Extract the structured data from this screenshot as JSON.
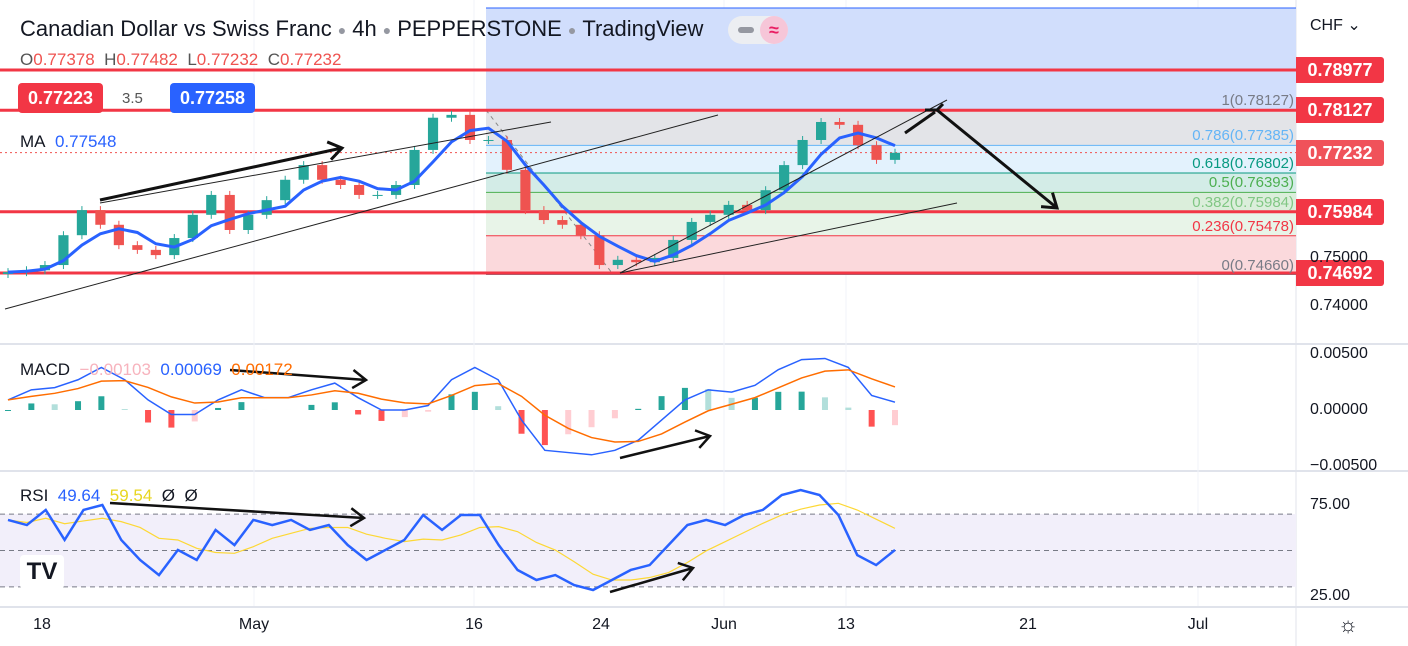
{
  "header": {
    "title": "Canadian Dollar vs Swiss Franc",
    "interval": "4h",
    "exchange": "PEPPERSTONE",
    "source": "TradingView",
    "ohlc": {
      "o_label": "O",
      "o": "0.77378",
      "h_label": "H",
      "h": "0.77482",
      "l_label": "L",
      "l": "0.77232",
      "c_label": "C",
      "c": "0.77232"
    },
    "sell_price": "0.77223",
    "spread": "3.5",
    "buy_price": "0.77258",
    "ma_label": "MA",
    "ma_value": "0.77548",
    "currency": "CHF"
  },
  "colors": {
    "up": "#26a69a",
    "down": "#ef5350",
    "ma": "#2962ff",
    "signal": "#ff6d00",
    "rsi": "#2962ff",
    "rsi_ma": "#fdd835",
    "level": "#f23645"
  },
  "price_axis": {
    "ticks": [
      "0.75000",
      "0.74000"
    ],
    "tick_values": [
      0.75,
      0.74
    ]
  },
  "levels": [
    {
      "price": 0.78977,
      "label": "0.78977"
    },
    {
      "price": 0.78127,
      "label": "0.78127"
    },
    {
      "price": 0.75984,
      "label": "0.75984"
    },
    {
      "price": 0.74692,
      "label": "0.74692"
    }
  ],
  "last_price": {
    "price": 0.77232,
    "label": "0.77232"
  },
  "fib": [
    {
      "ratio": "1",
      "price": 0.78127,
      "text": "1(0.78127)",
      "color": "#787b86",
      "fill": "#e3e4e8"
    },
    {
      "ratio": "0.786",
      "price": 0.77385,
      "text": "0.786(0.77385)",
      "color": "#64b5f6",
      "fill": "#e3f2fd"
    },
    {
      "ratio": "0.618",
      "price": 0.76802,
      "text": "0.618(0.76802)",
      "color": "#089981",
      "fill": "#d3ece7"
    },
    {
      "ratio": "0.5",
      "price": 0.76393,
      "text": "0.5(0.76393)",
      "color": "#4caf50",
      "fill": "#dbeedb"
    },
    {
      "ratio": "0.382",
      "price": 0.75984,
      "text": "0.382(0.75984)",
      "color": "#81c784",
      "fill": "#e8f4e8"
    },
    {
      "ratio": "0.236",
      "price": 0.75478,
      "text": "0.236(0.75478)",
      "color": "#f23645",
      "fill": "#fbd9dc"
    },
    {
      "ratio": "0",
      "price": 0.7466,
      "text": "0(0.74660)",
      "color": "#787b86",
      "fill": null
    }
  ],
  "macd": {
    "label": "MACD",
    "hist": "−0.00103",
    "macd": "0.00069",
    "signal": "0.00172",
    "ticks": [
      "0.00500",
      "0.00000",
      "−0.00500"
    ],
    "tick_values": [
      0.005,
      0,
      -0.005
    ]
  },
  "rsi": {
    "label": "RSI",
    "value": "49.64",
    "ma": "59.54",
    "extra1": "Ø",
    "extra2": "Ø",
    "ticks": [
      "75.00",
      "25.00"
    ],
    "tick_values": [
      75,
      25
    ],
    "bands": [
      70,
      50,
      30
    ]
  },
  "time_axis": [
    "18",
    "May",
    "16",
    "24",
    "Jun",
    "13",
    "21",
    "Jul"
  ],
  "chart_data": [
    {
      "type": "candlestick",
      "title": "Canadian Dollar vs Swiss Franc · 4h · PEPPERSTONE",
      "close": [
        0.7471,
        0.7475,
        0.7486,
        0.7549,
        0.7602,
        0.7571,
        0.7528,
        0.7518,
        0.7507,
        0.7543,
        0.7592,
        0.7634,
        0.756,
        0.7592,
        0.7623,
        0.7666,
        0.7697,
        0.7666,
        0.7655,
        0.7634,
        0.7634,
        0.7655,
        0.7729,
        0.7797,
        0.7803,
        0.775,
        0.775,
        0.7687,
        0.7602,
        0.7581,
        0.7571,
        0.7549,
        0.7486,
        0.7497,
        0.7492,
        0.7501,
        0.7539,
        0.7577,
        0.7592,
        0.7613,
        0.7602,
        0.7644,
        0.7697,
        0.775,
        0.7788,
        0.7782,
        0.7739,
        0.7708,
        0.7723
      ],
      "x_ticks": [
        "18",
        "May",
        "16",
        "24",
        "Jun",
        "13",
        "21",
        "Jul"
      ],
      "y_range": [
        0.737,
        0.792
      ]
    },
    {
      "type": "line",
      "title": "MACD",
      "macd": [
        0.0009,
        0.0018,
        0.002,
        0.0027,
        0.0038,
        0.0027,
        0.0009,
        -0.0004,
        -0.0004,
        0.0009,
        0.0018,
        0.0011,
        0.0011,
        0.0018,
        0.0024,
        0.0011,
        0,
        0,
        0.0004,
        0.0027,
        0.0038,
        0.0027,
        -0.0009,
        -0.0036,
        -0.0038,
        -0.004,
        -0.0036,
        -0.0027,
        -0.0009,
        0.0009,
        0.0018,
        0.0016,
        0.0022,
        0.0036,
        0.0045,
        0.0046,
        0.0038,
        0.0013,
        0.0007
      ],
      "y_range": [
        -0.0055,
        0.0055
      ]
    },
    {
      "type": "line",
      "title": "RSI",
      "rsi": [
        66.8,
        64.0,
        72.3,
        55.8,
        72.3,
        75,
        55.8,
        44.8,
        36.5,
        50.3,
        44.8,
        61.3,
        53.0,
        66.8,
        64.0,
        66.8,
        61.3,
        64.0,
        53.0,
        44.8,
        50.3,
        55.8,
        69.5,
        61.3,
        69.5,
        69.5,
        53.0,
        39.3,
        33.8,
        36.5,
        31.0,
        28.3,
        33.8,
        39.3,
        42.0,
        53.0,
        64.0,
        66.8,
        64.0,
        69.5,
        72.3,
        80.5,
        83.2,
        80.5,
        69.5,
        47.5,
        42.0,
        50.3
      ],
      "y_range": [
        20,
        85
      ]
    }
  ]
}
